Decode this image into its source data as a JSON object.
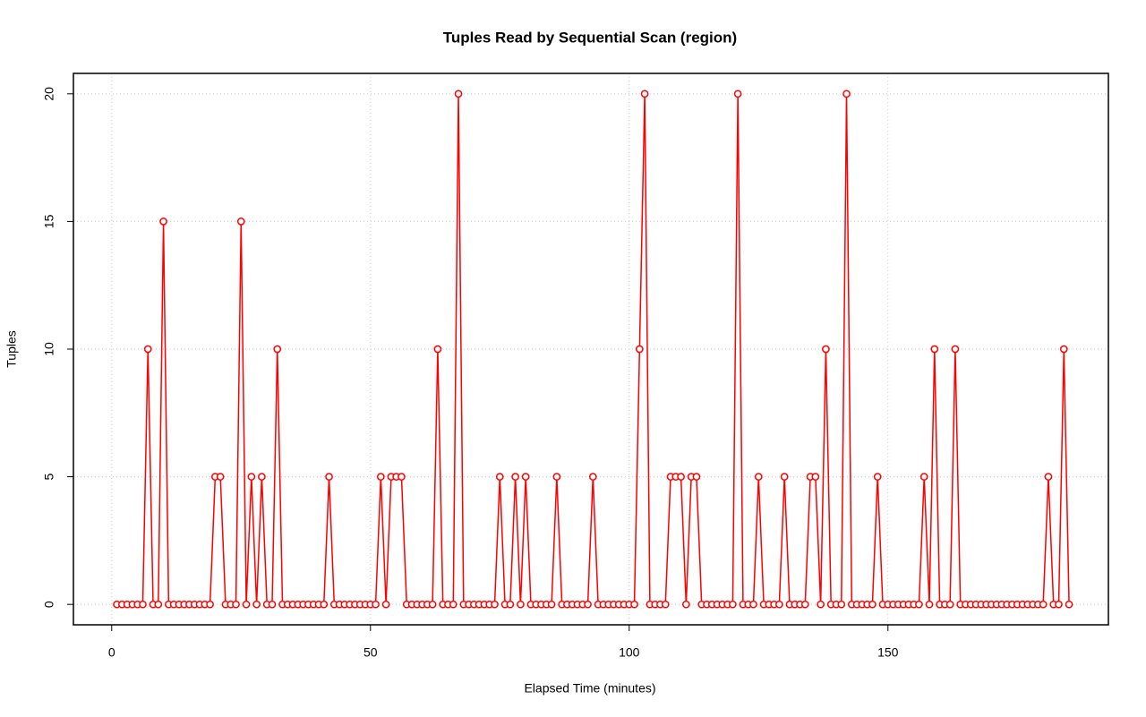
{
  "chart_data": {
    "type": "line",
    "title": "Tuples Read by Sequential Scan (region)",
    "xlabel": "Elapsed Time (minutes)",
    "ylabel": "Tuples",
    "color": "#ff0000",
    "x": [
      1,
      2,
      3,
      4,
      5,
      6,
      7,
      8,
      9,
      10,
      11,
      12,
      13,
      14,
      15,
      16,
      17,
      18,
      19,
      20,
      21,
      22,
      23,
      24,
      25,
      26,
      27,
      28,
      29,
      30,
      31,
      32,
      33,
      34,
      35,
      36,
      37,
      38,
      39,
      40,
      41,
      42,
      43,
      44,
      45,
      46,
      47,
      48,
      49,
      50,
      51,
      52,
      53,
      54,
      55,
      56,
      57,
      58,
      59,
      60,
      61,
      62,
      63,
      64,
      65,
      66,
      67,
      68,
      69,
      70,
      71,
      72,
      73,
      74,
      75,
      76,
      77,
      78,
      79,
      80,
      81,
      82,
      83,
      84,
      85,
      86,
      87,
      88,
      89,
      90,
      91,
      92,
      93,
      94,
      95,
      96,
      97,
      98,
      99,
      100,
      101,
      102,
      103,
      104,
      105,
      106,
      107,
      108,
      109,
      110,
      111,
      112,
      113,
      114,
      115,
      116,
      117,
      118,
      119,
      120,
      121,
      122,
      123,
      124,
      125,
      126,
      127,
      128,
      129,
      130,
      131,
      132,
      133,
      134,
      135,
      136,
      137,
      138,
      139,
      140,
      141,
      142,
      143,
      144,
      145,
      146,
      147,
      148,
      149,
      150,
      151,
      152,
      153,
      154,
      155,
      156,
      157,
      158,
      159,
      160,
      161,
      162,
      163,
      164,
      165,
      166,
      167,
      168,
      169,
      170,
      171,
      172,
      173,
      174,
      175,
      176,
      177,
      178,
      179,
      180,
      181,
      182,
      183,
      184,
      185
    ],
    "values": [
      0,
      0,
      0,
      0,
      0,
      0,
      10,
      0,
      0,
      15,
      0,
      0,
      0,
      0,
      0,
      0,
      0,
      0,
      0,
      5,
      5,
      0,
      0,
      0,
      15,
      0,
      5,
      0,
      5,
      0,
      0,
      10,
      0,
      0,
      0,
      0,
      0,
      0,
      0,
      0,
      0,
      5,
      0,
      0,
      0,
      0,
      0,
      0,
      0,
      0,
      0,
      5,
      0,
      5,
      5,
      5,
      0,
      0,
      0,
      0,
      0,
      0,
      10,
      0,
      0,
      0,
      20,
      0,
      0,
      0,
      0,
      0,
      0,
      0,
      5,
      0,
      0,
      5,
      0,
      5,
      0,
      0,
      0,
      0,
      0,
      5,
      0,
      0,
      0,
      0,
      0,
      0,
      5,
      0,
      0,
      0,
      0,
      0,
      0,
      0,
      0,
      10,
      20,
      0,
      0,
      0,
      0,
      5,
      5,
      5,
      0,
      5,
      5,
      0,
      0,
      0,
      0,
      0,
      0,
      0,
      20,
      0,
      0,
      0,
      5,
      0,
      0,
      0,
      0,
      5,
      0,
      0,
      0,
      0,
      5,
      5,
      0,
      10,
      0,
      0,
      0,
      20,
      0,
      0,
      0,
      0,
      0,
      5,
      0,
      0,
      0,
      0,
      0,
      0,
      0,
      0,
      5,
      0,
      10,
      0,
      0,
      0,
      10,
      0,
      0,
      0,
      0,
      0,
      0,
      0,
      0,
      0,
      0,
      0,
      0,
      0,
      0,
      0,
      0,
      0,
      5,
      0,
      0,
      10,
      0
    ],
    "xlim": [
      -7.4,
      192.6
    ],
    "ylim": [
      -0.8,
      20.8
    ],
    "xticks": [
      0,
      50,
      100,
      150
    ],
    "yticks": [
      0,
      5,
      10,
      15,
      20
    ],
    "grid": true
  }
}
